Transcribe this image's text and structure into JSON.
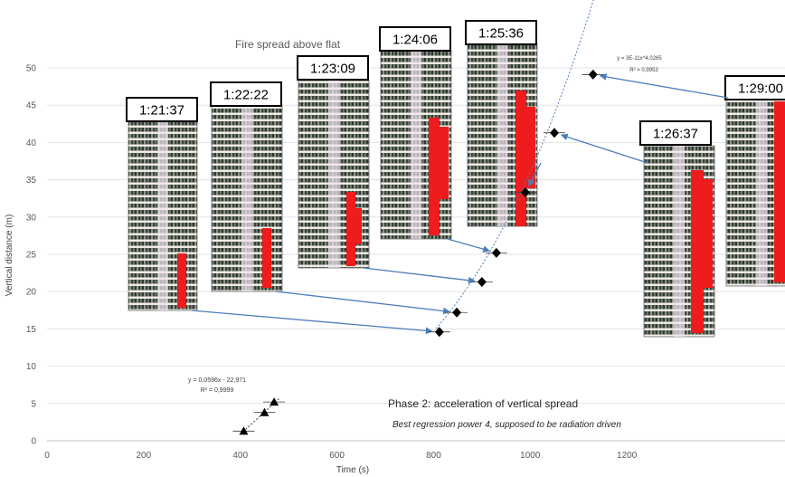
{
  "chart_data": {
    "type": "scatter",
    "title": "Fire spread above flat",
    "xlabel": "Time (s)",
    "ylabel": "Vertical distance (m)",
    "xlim": [
      0,
      1400
    ],
    "ylim": [
      0,
      50
    ],
    "xticks": [
      0,
      200,
      400,
      600,
      800,
      1000,
      1200
    ],
    "yticks": [
      0,
      5,
      10,
      15,
      20,
      25,
      30,
      35,
      40,
      45,
      50
    ],
    "grid": "horizontal",
    "series": [
      {
        "marker": "triangle",
        "points": [
          [
            407,
            1.3
          ],
          [
            450,
            3.8
          ],
          [
            470,
            5.2
          ]
        ],
        "trendline": "linear",
        "equation": "y = 0,0596x - 22,971",
        "r2": "R² = 0,9999"
      },
      {
        "marker": "diamond",
        "points": [
          [
            812,
            14.6
          ],
          [
            848,
            17.2
          ],
          [
            900,
            21.3
          ],
          [
            930,
            25.2
          ],
          [
            990,
            33.3
          ],
          [
            1050,
            41.3
          ],
          [
            1130,
            49.1
          ]
        ],
        "trendline": "power",
        "equation": "y = 3E-11x^4,0265",
        "r2": "R² = 0,9953"
      }
    ],
    "snapshots": [
      {
        "time": "1:21:37",
        "point": 0
      },
      {
        "time": "1:22:22",
        "point": 1
      },
      {
        "time": "1:23:09",
        "point": 2
      },
      {
        "time": "1:24:06",
        "point": 3
      },
      {
        "time": "1:25:36",
        "point": 4
      },
      {
        "time": "1:26:37",
        "point": 5
      },
      {
        "time": "1:29:00",
        "point": 6
      }
    ],
    "annotations": {
      "phase": "Phase 2: acceleration of vertical spread",
      "note": "Best regression power 4, supposed to be radiation driven"
    }
  }
}
